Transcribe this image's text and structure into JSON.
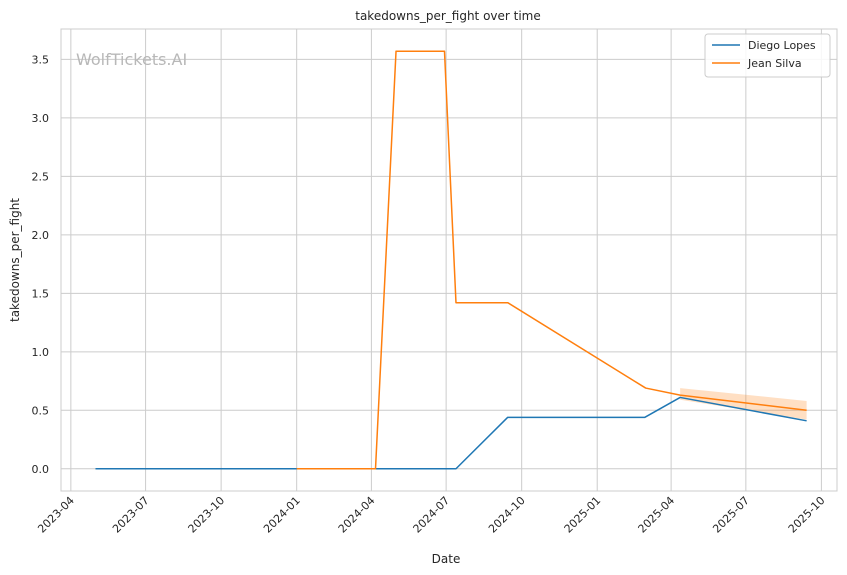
{
  "chart_data": {
    "type": "line",
    "title": "takedowns_per_fight over time",
    "xlabel": "Date",
    "ylabel": "takedowns_per_fight",
    "watermark": "WolfTickets.AI",
    "x_ticks": [
      "2023-04",
      "2023-07",
      "2023-10",
      "2024-01",
      "2024-04",
      "2024-07",
      "2024-10",
      "2025-01",
      "2025-04",
      "2025-07",
      "2025-10"
    ],
    "y_ticks": [
      "0.0",
      "0.5",
      "1.0",
      "1.5",
      "2.0",
      "2.5",
      "3.0",
      "3.5"
    ],
    "xlim": [
      "2023-03-20",
      "2025-10-20"
    ],
    "ylim": [
      -0.19,
      3.76
    ],
    "grid": true,
    "legend": "top-right",
    "series": [
      {
        "name": "Diego Lopes",
        "color": "#1f77b4",
        "points": [
          {
            "x": "2023-05-01",
            "y": 0.0
          },
          {
            "x": "2024-07-13",
            "y": 0.0
          },
          {
            "x": "2024-09-14",
            "y": 0.44
          },
          {
            "x": "2025-02-28",
            "y": 0.44
          },
          {
            "x": "2025-04-12",
            "y": 0.61
          },
          {
            "x": "2025-09-13",
            "y": 0.41
          }
        ]
      },
      {
        "name": "Jean Silva",
        "color": "#ff7f0e",
        "points": [
          {
            "x": "2024-01-01",
            "y": 0.0
          },
          {
            "x": "2024-04-06",
            "y": 0.0
          },
          {
            "x": "2024-05-01",
            "y": 3.57
          },
          {
            "x": "2024-06-29",
            "y": 3.57
          },
          {
            "x": "2024-07-13",
            "y": 1.42
          },
          {
            "x": "2024-09-14",
            "y": 1.42
          },
          {
            "x": "2025-03-01",
            "y": 0.69
          },
          {
            "x": "2025-04-12",
            "y": 0.63
          },
          {
            "x": "2025-09-13",
            "y": 0.5
          }
        ],
        "band": [
          {
            "x": "2025-04-12",
            "low": 0.59,
            "high": 0.69
          },
          {
            "x": "2025-09-13",
            "low": 0.42,
            "high": 0.58
          }
        ]
      }
    ]
  }
}
